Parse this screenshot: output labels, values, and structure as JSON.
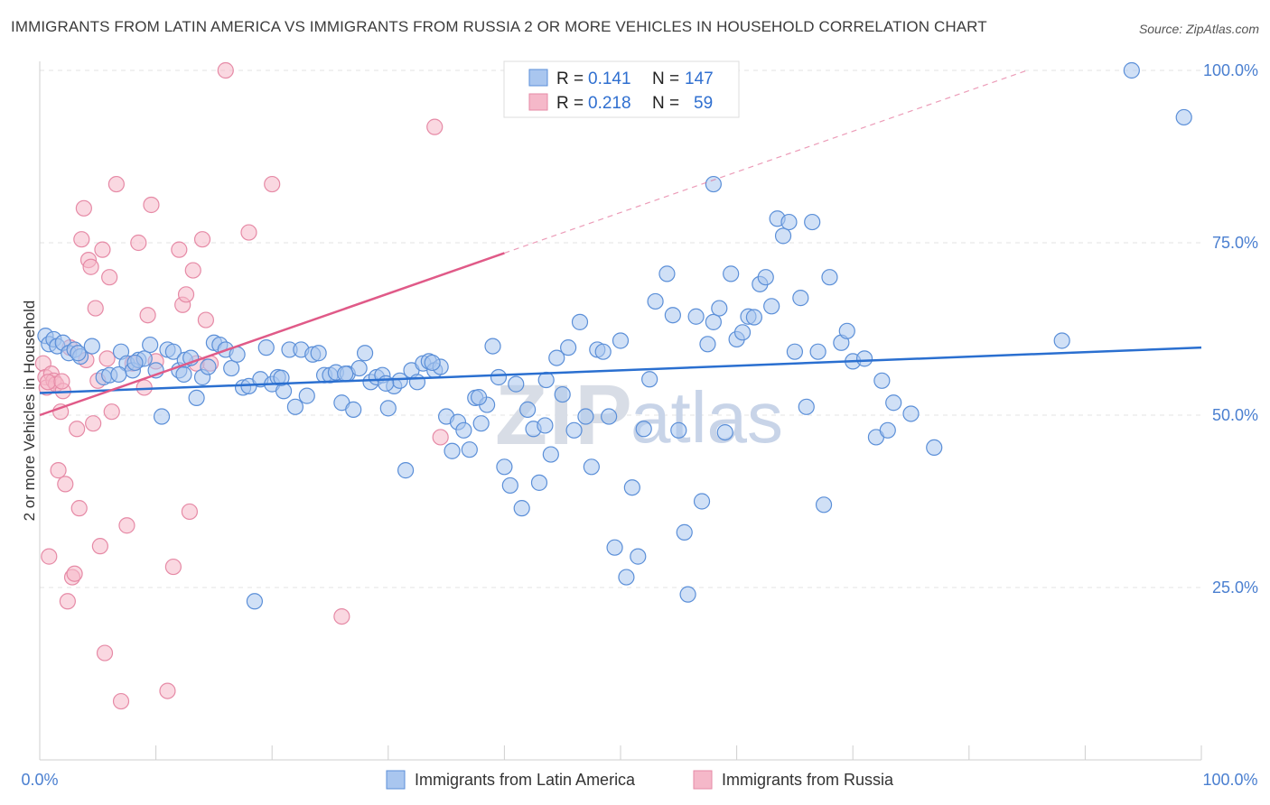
{
  "title": "IMMIGRANTS FROM LATIN AMERICA VS IMMIGRANTS FROM RUSSIA 2 OR MORE VEHICLES IN HOUSEHOLD CORRELATION CHART",
  "source": "Source: ZipAtlas.com",
  "watermark": {
    "zip": "ZIP",
    "atlas": "atlas"
  },
  "colors": {
    "blue_fill": "#a9c6ef",
    "blue_stroke": "#5b8fd8",
    "blue_line": "#2a6fd0",
    "pink_fill": "#f5b8c9",
    "pink_stroke": "#e68aa6",
    "pink_line": "#e05a88",
    "grid": "#e3e3e3",
    "axis_text": "#4a7fd0"
  },
  "stats_box": {
    "rows": [
      {
        "r_label": "R =",
        "r_value": "0.141",
        "n_label": "N =",
        "n_value": "147"
      },
      {
        "r_label": "R =",
        "r_value": "0.218",
        "n_label": "N =",
        "n_value": "59"
      }
    ]
  },
  "chart_data": {
    "type": "scatter",
    "title": "IMMIGRANTS FROM LATIN AMERICA VS IMMIGRANTS FROM RUSSIA 2 OR MORE VEHICLES IN HOUSEHOLD CORRELATION CHART",
    "xlabel": "",
    "ylabel": "2 or more Vehicles in Household",
    "xlim": [
      0,
      100
    ],
    "ylim": [
      0,
      105
    ],
    "x_tick_labels": [
      "0.0%",
      "100.0%"
    ],
    "y_ticks": [
      25,
      50,
      75,
      100
    ],
    "y_tick_labels": [
      "25.0%",
      "50.0%",
      "75.0%",
      "100.0%"
    ],
    "legend": [
      "Immigrants from Latin America",
      "Immigrants from Russia"
    ],
    "series": [
      {
        "name": "Immigrants from Latin America",
        "trend": {
          "x0": 0,
          "y0": 53.2,
          "x1": 100,
          "y1": 59.8
        },
        "points": [
          [
            0.5,
            61.5
          ],
          [
            0.8,
            60.3
          ],
          [
            1.2,
            61.0
          ],
          [
            1.5,
            60.0
          ],
          [
            2.0,
            60.5
          ],
          [
            2.5,
            59.0
          ],
          [
            3.0,
            59.5
          ],
          [
            3.5,
            58.5
          ],
          [
            4.5,
            60.0
          ],
          [
            5.5,
            55.5
          ],
          [
            6.0,
            55.8
          ],
          [
            7.0,
            59.2
          ],
          [
            7.5,
            57.5
          ],
          [
            8.0,
            56.5
          ],
          [
            8.5,
            58.0
          ],
          [
            9.0,
            58.2
          ],
          [
            9.5,
            60.2
          ],
          [
            10.0,
            56.5
          ],
          [
            10.5,
            49.8
          ],
          [
            11.0,
            59.5
          ],
          [
            11.5,
            59.2
          ],
          [
            12.0,
            56.5
          ],
          [
            12.5,
            58.0
          ],
          [
            13.0,
            58.3
          ],
          [
            13.5,
            52.5
          ],
          [
            14.0,
            55.5
          ],
          [
            14.5,
            57.0
          ],
          [
            15.0,
            60.5
          ],
          [
            15.5,
            60.2
          ],
          [
            16.0,
            59.5
          ],
          [
            16.5,
            56.8
          ],
          [
            17.0,
            58.8
          ],
          [
            17.5,
            54.0
          ],
          [
            18.0,
            54.2
          ],
          [
            18.5,
            23.0
          ],
          [
            19.0,
            55.2
          ],
          [
            19.5,
            59.8
          ],
          [
            20.0,
            54.5
          ],
          [
            20.5,
            55.5
          ],
          [
            21.0,
            53.5
          ],
          [
            21.5,
            59.5
          ],
          [
            22.0,
            51.2
          ],
          [
            22.5,
            59.5
          ],
          [
            23.0,
            52.8
          ],
          [
            23.5,
            58.8
          ],
          [
            24.0,
            59.0
          ],
          [
            24.5,
            55.8
          ],
          [
            25.0,
            55.8
          ],
          [
            25.5,
            56.2
          ],
          [
            26.0,
            51.8
          ],
          [
            26.5,
            56.0
          ],
          [
            27.0,
            50.8
          ],
          [
            27.5,
            56.8
          ],
          [
            28.0,
            59.0
          ],
          [
            28.5,
            54.8
          ],
          [
            29.0,
            55.5
          ],
          [
            29.5,
            55.8
          ],
          [
            30.0,
            51.0
          ],
          [
            30.5,
            54.2
          ],
          [
            31.0,
            55.0
          ],
          [
            31.5,
            42.0
          ],
          [
            32.0,
            56.5
          ],
          [
            32.5,
            54.8
          ],
          [
            33.0,
            57.5
          ],
          [
            33.5,
            57.8
          ],
          [
            34.0,
            56.5
          ],
          [
            34.5,
            57.0
          ],
          [
            35.0,
            49.8
          ],
          [
            35.5,
            44.8
          ],
          [
            36.0,
            49.0
          ],
          [
            36.5,
            47.8
          ],
          [
            37.0,
            45.0
          ],
          [
            37.5,
            52.5
          ],
          [
            38.0,
            48.8
          ],
          [
            38.5,
            51.5
          ],
          [
            39.0,
            60.0
          ],
          [
            39.5,
            55.5
          ],
          [
            40.0,
            42.5
          ],
          [
            40.5,
            39.8
          ],
          [
            41.0,
            54.5
          ],
          [
            41.5,
            36.5
          ],
          [
            42.0,
            50.8
          ],
          [
            42.5,
            48.0
          ],
          [
            43.0,
            40.2
          ],
          [
            43.5,
            48.5
          ],
          [
            44.0,
            44.3
          ],
          [
            44.5,
            58.3
          ],
          [
            45.0,
            53.0
          ],
          [
            45.5,
            59.8
          ],
          [
            46.0,
            47.8
          ],
          [
            46.5,
            63.5
          ],
          [
            47.0,
            49.8
          ],
          [
            47.5,
            42.5
          ],
          [
            48.0,
            59.5
          ],
          [
            48.5,
            59.2
          ],
          [
            49.0,
            49.8
          ],
          [
            49.5,
            30.8
          ],
          [
            50.0,
            60.8
          ],
          [
            50.5,
            26.5
          ],
          [
            51.0,
            39.5
          ],
          [
            51.5,
            29.5
          ],
          [
            52.0,
            48.0
          ],
          [
            52.5,
            55.2
          ],
          [
            53.0,
            66.5
          ],
          [
            54.0,
            70.5
          ],
          [
            54.5,
            64.5
          ],
          [
            55.0,
            47.8
          ],
          [
            55.5,
            33.0
          ],
          [
            55.8,
            24.0
          ],
          [
            56.5,
            64.3
          ],
          [
            57.0,
            37.5
          ],
          [
            57.5,
            60.3
          ],
          [
            58.0,
            63.5
          ],
          [
            58.5,
            65.5
          ],
          [
            59.0,
            47.5
          ],
          [
            59.5,
            70.5
          ],
          [
            60.0,
            61.0
          ],
          [
            60.5,
            62.0
          ],
          [
            61.0,
            64.3
          ],
          [
            61.5,
            64.2
          ],
          [
            62.0,
            69.0
          ],
          [
            62.5,
            70.0
          ],
          [
            63.0,
            65.8
          ],
          [
            63.5,
            78.5
          ],
          [
            64.0,
            76.0
          ],
          [
            64.5,
            78.0
          ],
          [
            65.0,
            59.2
          ],
          [
            65.5,
            67.0
          ],
          [
            66.0,
            51.2
          ],
          [
            66.5,
            78.0
          ],
          [
            67.0,
            59.2
          ],
          [
            67.5,
            37.0
          ],
          [
            68.0,
            70.0
          ],
          [
            69.0,
            60.5
          ],
          [
            69.5,
            62.2
          ],
          [
            70.0,
            57.8
          ],
          [
            71.0,
            58.2
          ],
          [
            72.0,
            46.8
          ],
          [
            72.5,
            55.0
          ],
          [
            73.0,
            47.8
          ],
          [
            73.5,
            51.8
          ],
          [
            75.0,
            50.2
          ],
          [
            77.0,
            45.3
          ],
          [
            58.0,
            83.5
          ],
          [
            88.0,
            60.8
          ],
          [
            94.0,
            100.0
          ],
          [
            98.5,
            93.2
          ],
          [
            3.3,
            59.0
          ],
          [
            12.4,
            55.9
          ],
          [
            20.8,
            55.4
          ],
          [
            26.3,
            56.0
          ],
          [
            29.8,
            54.6
          ],
          [
            33.8,
            57.6
          ],
          [
            37.8,
            52.6
          ],
          [
            43.6,
            55.1
          ],
          [
            6.8,
            55.9
          ],
          [
            8.2,
            57.6
          ]
        ]
      },
      {
        "name": "Immigrants from Russia",
        "trend": {
          "x0": 0,
          "y0": 50.0,
          "x1": 40,
          "y1": 73.5,
          "dash_to": {
            "x": 85,
            "y": 100
          }
        },
        "points": [
          [
            0.3,
            57.5
          ],
          [
            0.5,
            55.5
          ],
          [
            0.6,
            54.0
          ],
          [
            0.8,
            29.5
          ],
          [
            1.0,
            56.0
          ],
          [
            1.2,
            55.0
          ],
          [
            1.4,
            54.5
          ],
          [
            1.6,
            42.0
          ],
          [
            1.8,
            50.5
          ],
          [
            2.0,
            53.5
          ],
          [
            2.2,
            40.0
          ],
          [
            2.4,
            23.0
          ],
          [
            2.6,
            59.8
          ],
          [
            2.8,
            26.5
          ],
          [
            3.0,
            27.0
          ],
          [
            3.2,
            48.0
          ],
          [
            3.4,
            36.5
          ],
          [
            3.6,
            75.5
          ],
          [
            3.8,
            80.0
          ],
          [
            4.0,
            58.0
          ],
          [
            4.2,
            72.5
          ],
          [
            4.4,
            71.5
          ],
          [
            4.6,
            48.8
          ],
          [
            4.8,
            65.5
          ],
          [
            5.0,
            55.0
          ],
          [
            5.2,
            31.0
          ],
          [
            5.4,
            74.0
          ],
          [
            5.6,
            15.5
          ],
          [
            5.8,
            58.2
          ],
          [
            6.0,
            70.0
          ],
          [
            6.2,
            50.5
          ],
          [
            6.6,
            83.5
          ],
          [
            7.0,
            8.5
          ],
          [
            7.5,
            34.0
          ],
          [
            8.0,
            57.5
          ],
          [
            8.5,
            75.0
          ],
          [
            9.0,
            54.0
          ],
          [
            9.3,
            64.5
          ],
          [
            9.6,
            80.5
          ],
          [
            10.0,
            57.8
          ],
          [
            11.0,
            10.0
          ],
          [
            11.5,
            28.0
          ],
          [
            12.0,
            74.0
          ],
          [
            12.3,
            66.0
          ],
          [
            12.6,
            67.5
          ],
          [
            12.9,
            36.0
          ],
          [
            13.2,
            71.0
          ],
          [
            13.5,
            57.5
          ],
          [
            14.0,
            75.5
          ],
          [
            14.3,
            63.8
          ],
          [
            14.7,
            57.5
          ],
          [
            16.0,
            100.0
          ],
          [
            18.0,
            76.5
          ],
          [
            20.0,
            83.5
          ],
          [
            26.0,
            20.8
          ],
          [
            34.0,
            91.8
          ],
          [
            34.5,
            46.8
          ],
          [
            0.7,
            54.8
          ],
          [
            1.9,
            54.9
          ]
        ]
      }
    ]
  },
  "axis": {
    "ylabel": "2 or more Vehicles in Household",
    "x_left": "0.0%",
    "x_right": "100.0%"
  },
  "legend": {
    "item1": "Immigrants from Latin America",
    "item2": "Immigrants from Russia"
  }
}
